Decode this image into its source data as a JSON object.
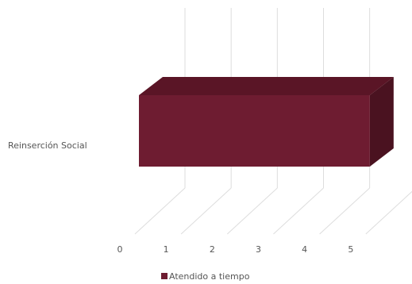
{
  "chart_data": {
    "type": "bar3d",
    "categories": [
      "Reinserción Social"
    ],
    "series": [
      {
        "name": "Atendido a tiempo",
        "color": "#6e1c31",
        "values": [
          5
        ]
      }
    ],
    "xlim": [
      0,
      6
    ],
    "xticks": [
      0,
      1,
      2,
      3,
      4,
      5
    ],
    "grid": true,
    "legend": "bottom"
  }
}
